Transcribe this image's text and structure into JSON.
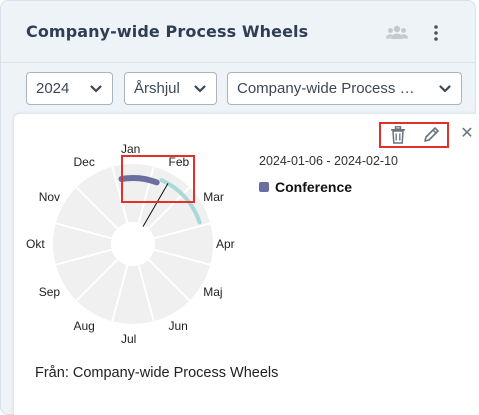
{
  "header": {
    "title": "Company-wide Process Wheels",
    "people_icon": "people-icon",
    "menu_icon": "more-vertical-icon"
  },
  "filters": {
    "year": "2024",
    "wheel_type": "Årshjul",
    "wheel_name": "Company-wide Process Wheels"
  },
  "wheel": {
    "months": [
      "Jan",
      "Feb",
      "Mar",
      "Apr",
      "Maj",
      "Jun",
      "Jul",
      "Aug",
      "Sep",
      "Okt",
      "Nov",
      "Dec"
    ],
    "date_range": "2024-01-06 - 2024-02-10",
    "legend_label": "Conference",
    "legend_color": "#6c6ea0",
    "second_arc_color": "#a9d9d6",
    "ring_color": "#f0f0f0"
  },
  "actions": {
    "delete_icon": "trash-icon",
    "edit_icon": "pencil-icon",
    "close_symbol": "✕"
  },
  "source": "Från: Company-wide Process Wheels",
  "colors": {
    "highlight": "#e0312b",
    "title": "#2f3e55"
  }
}
